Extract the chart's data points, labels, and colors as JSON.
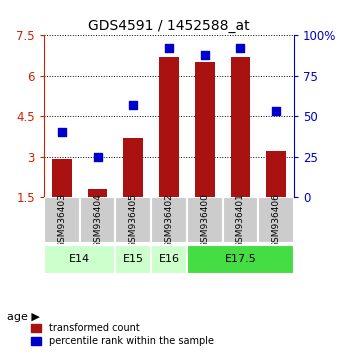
{
  "title": "GDS4591 / 1452588_at",
  "samples": [
    "GSM936403",
    "GSM936404",
    "GSM936405",
    "GSM936402",
    "GSM936400",
    "GSM936401",
    "GSM936406"
  ],
  "bar_values": [
    2.9,
    1.8,
    3.7,
    6.7,
    6.5,
    6.7,
    3.2
  ],
  "percentile_values": [
    40,
    25,
    57,
    92,
    88,
    92,
    53
  ],
  "bar_color": "#aa1111",
  "dot_color": "#0000cc",
  "ylim_left": [
    1.5,
    7.5
  ],
  "ylim_right": [
    0,
    100
  ],
  "yticks_left": [
    1.5,
    3.0,
    4.5,
    6.0,
    7.5
  ],
  "yticks_right": [
    0,
    25,
    50,
    75,
    100
  ],
  "ytick_labels_left": [
    "1.5",
    "3",
    "4.5",
    "6",
    "7.5"
  ],
  "ytick_labels_right": [
    "0",
    "25",
    "50",
    "75",
    "100%"
  ],
  "age_groups": [
    {
      "label": "E14",
      "indices": [
        0,
        1
      ],
      "color": "#ccffcc",
      "start": 0,
      "end": 2
    },
    {
      "label": "E15",
      "indices": [
        2
      ],
      "color": "#ccffcc",
      "start": 2,
      "end": 3
    },
    {
      "label": "E16",
      "indices": [
        3
      ],
      "color": "#ccffcc",
      "start": 3,
      "end": 4
    },
    {
      "label": "E17.5",
      "indices": [
        4,
        5,
        6
      ],
      "color": "#44dd44",
      "start": 4,
      "end": 7
    }
  ],
  "age_row_colors": [
    "#ccffcc",
    "#ccffcc",
    "#ccffcc",
    "#ccffcc",
    "#44dd44",
    "#44dd44",
    "#44dd44"
  ],
  "sample_bg_color": "#cccccc",
  "grid_color": "#000000",
  "legend_labels": [
    "transformed count",
    "percentile rank within the sample"
  ],
  "bar_bottom": 1.5
}
